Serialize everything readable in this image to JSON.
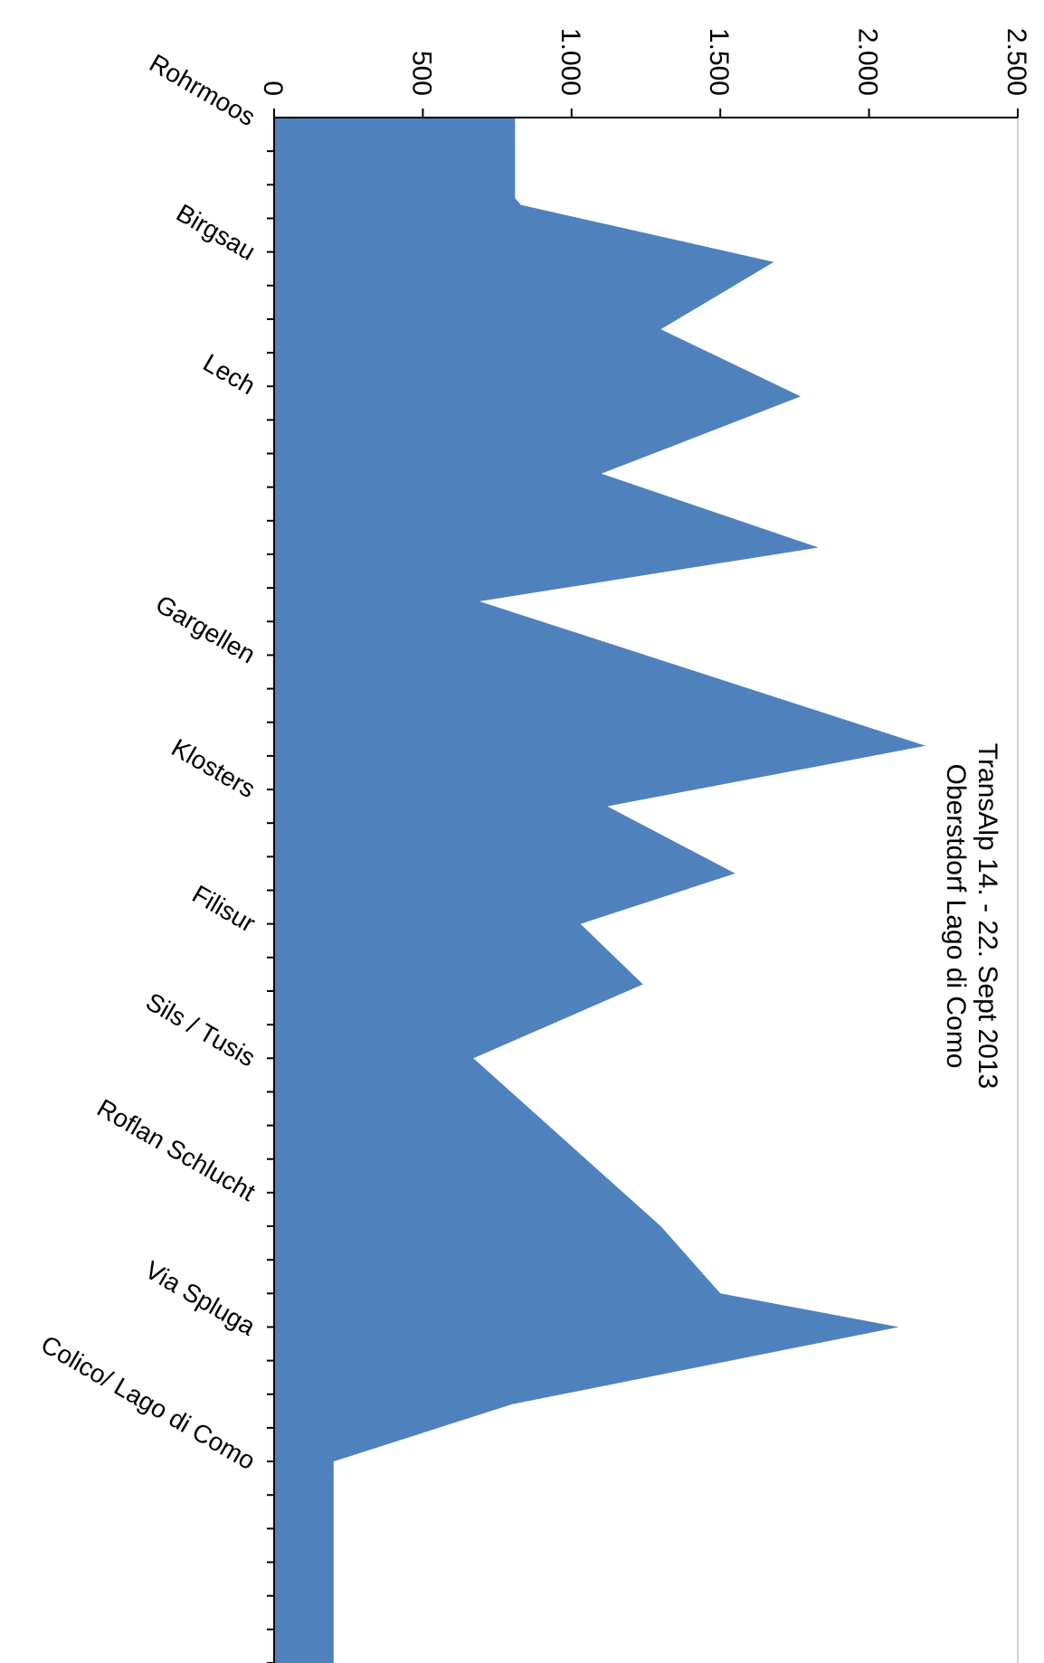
{
  "chart_data": {
    "type": "area",
    "title_line1": "TransAlp 14. - 22. Sept 2013",
    "title_line2": "Oberstdorf Lago di Como",
    "value_axis": {
      "min": 0,
      "max": 2500,
      "ticks": [
        0,
        500,
        1000,
        1500,
        2000,
        2500
      ],
      "tick_labels": [
        "0",
        "500",
        "1.000",
        "1.500",
        "2.000",
        "2.500"
      ]
    },
    "categories": [
      "Rohrmoos",
      "Birgsau",
      "Lech",
      "Gargellen",
      "Klosters",
      "Filisur",
      "Sils / Tusis",
      "Roflan Schlucht",
      "Via Spluga",
      "Colico/ Lago di Como"
    ],
    "category_tick_positions": [
      0,
      4,
      8,
      16,
      20,
      24,
      28,
      32,
      36,
      40
    ],
    "distance_max": 46,
    "minor_tick_count": 46,
    "profile": [
      {
        "d": 0,
        "elev": 810
      },
      {
        "d": 2.4,
        "elev": 810
      },
      {
        "d": 2.6,
        "elev": 830
      },
      {
        "d": 4.3,
        "elev": 1680
      },
      {
        "d": 6.3,
        "elev": 1300
      },
      {
        "d": 8.3,
        "elev": 1770
      },
      {
        "d": 10.6,
        "elev": 1100
      },
      {
        "d": 12.8,
        "elev": 1830
      },
      {
        "d": 14.4,
        "elev": 690
      },
      {
        "d": 18.7,
        "elev": 2190
      },
      {
        "d": 20.5,
        "elev": 1120
      },
      {
        "d": 22.5,
        "elev": 1550
      },
      {
        "d": 24.0,
        "elev": 1030
      },
      {
        "d": 25.8,
        "elev": 1240
      },
      {
        "d": 28.0,
        "elev": 670
      },
      {
        "d": 33.0,
        "elev": 1300
      },
      {
        "d": 35.0,
        "elev": 1500
      },
      {
        "d": 36.0,
        "elev": 2100
      },
      {
        "d": 38.3,
        "elev": 800
      },
      {
        "d": 40.0,
        "elev": 200
      },
      {
        "d": 46.0,
        "elev": 200
      }
    ],
    "colors": {
      "area": "#4f81bd",
      "axis": "#000000",
      "edge_line": "#c0c0c0"
    }
  }
}
